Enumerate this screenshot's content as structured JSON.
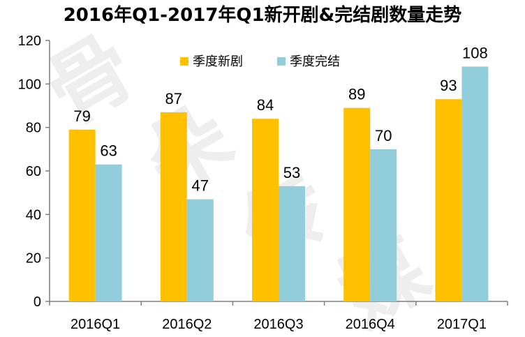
{
  "colors": {
    "series_new": "#FFC000",
    "series_done": "#92CDDC",
    "axis": "#7f7f7f"
  },
  "watermark": "骨朵传媒",
  "chart_data": {
    "type": "bar",
    "title": "2016年Q1-2017年Q1新开剧&完结剧数量走势",
    "categories": [
      "2016Q1",
      "2016Q2",
      "2016Q3",
      "2016Q4",
      "2017Q1"
    ],
    "series": [
      {
        "name": "季度新剧",
        "values": [
          79,
          87,
          84,
          89,
          93
        ]
      },
      {
        "name": "季度完结",
        "values": [
          63,
          47,
          53,
          70,
          108
        ]
      }
    ],
    "ylim": [
      0,
      120
    ],
    "yticks": [
      0,
      20,
      40,
      60,
      80,
      100,
      120
    ],
    "xlabel": "",
    "ylabel": "",
    "grid": false,
    "legend_position": "top"
  }
}
